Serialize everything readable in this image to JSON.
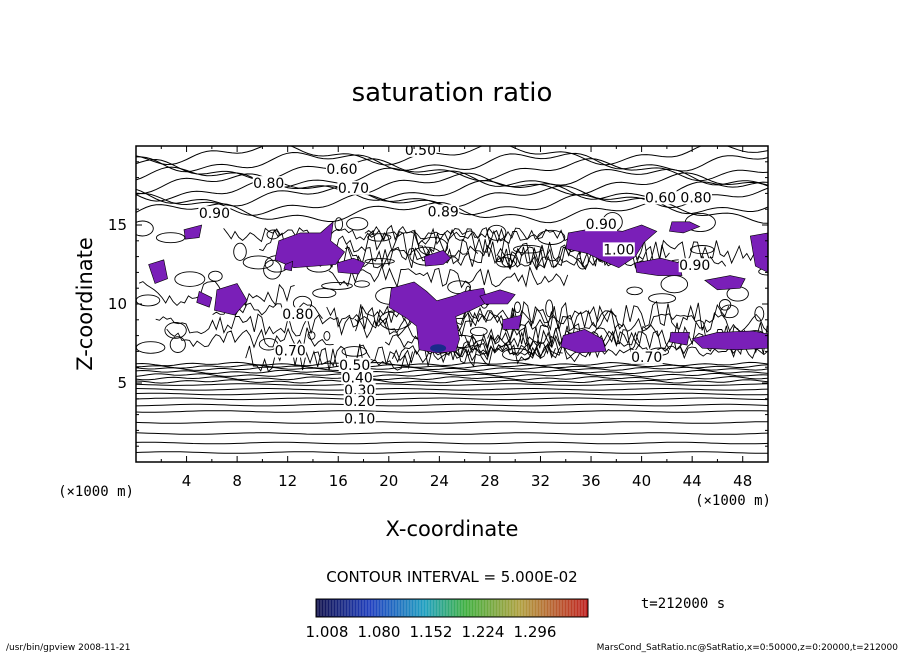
{
  "chart_data": {
    "type": "contour",
    "title": "saturation ratio",
    "xlabel": "X-coordinate",
    "ylabel": "Z-coordinate",
    "x_unit": "(×1000 m)",
    "y_unit": "(×1000 m)",
    "xlim": [
      0,
      50
    ],
    "ylim": [
      0,
      20
    ],
    "x_ticks": [
      4,
      8,
      12,
      16,
      20,
      24,
      28,
      32,
      36,
      40,
      44,
      48
    ],
    "y_ticks": [
      5,
      10,
      15
    ],
    "contour_interval_text": "CONTOUR INTERVAL = 5.000E-02",
    "time_text": "t=212000 s",
    "colorbar_ticks": [
      "1.008",
      "1.080",
      "1.152",
      "1.224",
      "1.296"
    ],
    "contour_labels": [
      {
        "text": "0.50",
        "x": 22.5,
        "z": 19.5
      },
      {
        "text": "0.60",
        "x": 16.3,
        "z": 18.3
      },
      {
        "text": "0.70",
        "x": 17.2,
        "z": 17.1
      },
      {
        "text": "0.80",
        "x": 10.5,
        "z": 17.4
      },
      {
        "text": "0.90",
        "x": 6.2,
        "z": 15.5
      },
      {
        "text": "0.89",
        "x": 24.3,
        "z": 15.6
      },
      {
        "text": "0.90",
        "x": 36.8,
        "z": 14.8
      },
      {
        "text": "0.60",
        "x": 41.5,
        "z": 16.5
      },
      {
        "text": "0.80",
        "x": 44.3,
        "z": 16.5
      },
      {
        "text": "1.00",
        "x": 38.2,
        "z": 13.2
      },
      {
        "text": "0.90",
        "x": 44.2,
        "z": 12.2
      },
      {
        "text": "0.80",
        "x": 12.8,
        "z": 9.1
      },
      {
        "text": "0.70",
        "x": 12.2,
        "z": 6.8
      },
      {
        "text": "0.50",
        "x": 17.3,
        "z": 5.9
      },
      {
        "text": "0.40",
        "x": 17.5,
        "z": 5.1
      },
      {
        "text": "0.30",
        "x": 17.7,
        "z": 4.3
      },
      {
        "text": "0.20",
        "x": 17.7,
        "z": 3.6
      },
      {
        "text": "0.10",
        "x": 17.7,
        "z": 2.5
      },
      {
        "text": "0.70",
        "x": 40.4,
        "z": 6.4
      }
    ]
  },
  "footer": {
    "left": "/usr/bin/gpview   2008-11-21",
    "right": "MarsCond_SatRatio.nc@SatRatio,x=0:50000,z=0:20000,t=212000"
  },
  "colors": {
    "fill": "#7a1fb8",
    "line": "#000000"
  }
}
